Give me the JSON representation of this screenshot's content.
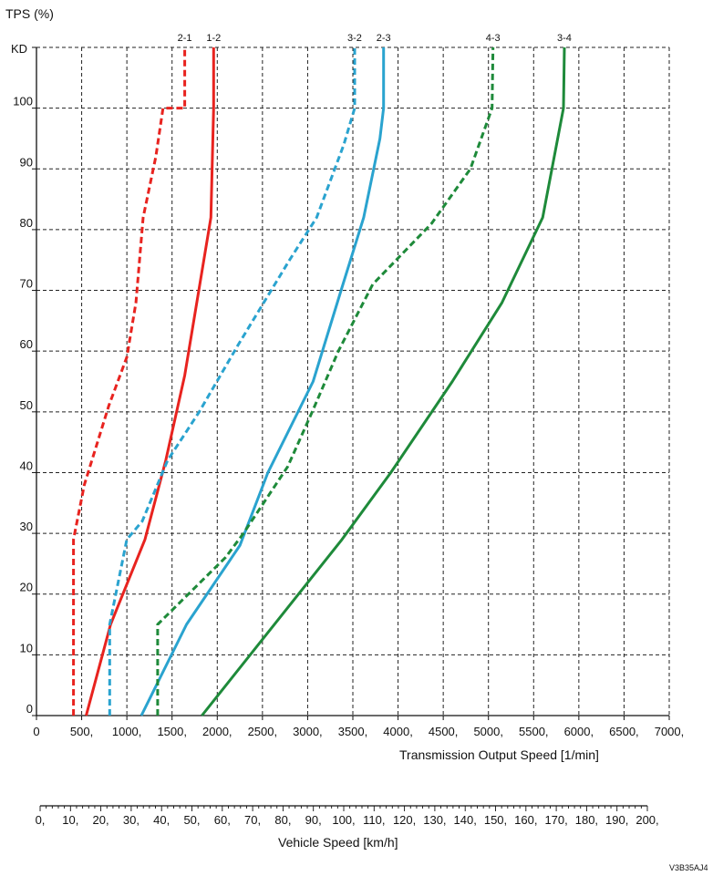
{
  "chart_data": {
    "type": "line",
    "y_axis": {
      "label": "TPS (%)",
      "kd_label": "KD",
      "ticks": [
        0,
        10,
        20,
        30,
        40,
        50,
        60,
        70,
        80,
        90,
        100
      ],
      "range": [
        0,
        110
      ]
    },
    "x_axis": {
      "label": "Transmission Output Speed [1/min]",
      "ticks": [
        0,
        500,
        1000,
        1500,
        2000,
        2500,
        3000,
        3500,
        4000,
        4500,
        5000,
        5500,
        6000,
        6500,
        7000
      ],
      "tick_labels": [
        "0",
        "500,",
        "1000,",
        "1500,",
        "2000,",
        "2500,",
        "3000,",
        "3500,",
        "4000,",
        "4500,",
        "5000,",
        "5500,",
        "6000,",
        "6500,",
        "7000,"
      ],
      "range": [
        0,
        7000
      ]
    },
    "secondary_x_axis": {
      "label": "Vehicle Speed [km/h]",
      "ticks": [
        0,
        10,
        20,
        30,
        40,
        50,
        60,
        70,
        80,
        90,
        100,
        110,
        120,
        130,
        140,
        150,
        160,
        170,
        180,
        190,
        200
      ],
      "tick_labels": [
        "0,",
        "10,",
        "20,",
        "30,",
        "40,",
        "50,",
        "60,",
        "70,",
        "80,",
        "90,",
        "100,",
        "110,",
        "120,",
        "130,",
        "140,",
        "150,",
        "160,",
        "170,",
        "180,",
        "190,",
        "200,"
      ],
      "range": [
        0,
        200
      ]
    },
    "grid": true,
    "series": [
      {
        "name": "2-1",
        "color": "#e8231f",
        "dashed": true,
        "points": [
          [
            410,
            0
          ],
          [
            410,
            29
          ],
          [
            530,
            38
          ],
          [
            800,
            51
          ],
          [
            1000,
            59
          ],
          [
            1100,
            68
          ],
          [
            1180,
            82
          ],
          [
            1320,
            92
          ],
          [
            1400,
            100
          ],
          [
            1640,
            100
          ],
          [
            1640,
            110
          ]
        ]
      },
      {
        "name": "1-2",
        "color": "#e8231f",
        "dashed": false,
        "points": [
          [
            550,
            0
          ],
          [
            820,
            15
          ],
          [
            1200,
            29
          ],
          [
            1430,
            42
          ],
          [
            1640,
            56
          ],
          [
            1930,
            82
          ],
          [
            1960,
            100
          ],
          [
            1960,
            110
          ]
        ]
      },
      {
        "name": "3-2",
        "color": "#2aa3cf",
        "dashed": true,
        "points": [
          [
            810,
            0
          ],
          [
            810,
            15
          ],
          [
            1000,
            29
          ],
          [
            1170,
            32
          ],
          [
            1450,
            42
          ],
          [
            1800,
            50
          ],
          [
            2230,
            61
          ],
          [
            2800,
            75
          ],
          [
            3100,
            82
          ],
          [
            3400,
            94
          ],
          [
            3520,
            100
          ],
          [
            3520,
            110
          ]
        ]
      },
      {
        "name": "2-3",
        "color": "#2aa3cf",
        "dashed": false,
        "points": [
          [
            1160,
            0
          ],
          [
            1660,
            15
          ],
          [
            2250,
            28
          ],
          [
            2560,
            40
          ],
          [
            3060,
            55
          ],
          [
            3370,
            70
          ],
          [
            3620,
            82
          ],
          [
            3800,
            95
          ],
          [
            3840,
            100
          ],
          [
            3840,
            110
          ]
        ]
      },
      {
        "name": "4-3",
        "color": "#1e8a3a",
        "dashed": true,
        "points": [
          [
            1340,
            0
          ],
          [
            1340,
            15
          ],
          [
            2090,
            26
          ],
          [
            2290,
            30
          ],
          [
            2780,
            41
          ],
          [
            3050,
            50
          ],
          [
            3340,
            60
          ],
          [
            3720,
            71
          ],
          [
            4370,
            81
          ],
          [
            4800,
            90
          ],
          [
            5040,
            100
          ],
          [
            5050,
            110
          ]
        ]
      },
      {
        "name": "3-4",
        "color": "#1e8a3a",
        "dashed": false,
        "points": [
          [
            1830,
            0
          ],
          [
            3380,
            29
          ],
          [
            3920,
            40
          ],
          [
            4600,
            55
          ],
          [
            5150,
            68
          ],
          [
            5600,
            82
          ],
          [
            5830,
            100
          ],
          [
            5840,
            110
          ]
        ]
      }
    ]
  },
  "footer": {
    "code": "V3B35AJ4"
  }
}
